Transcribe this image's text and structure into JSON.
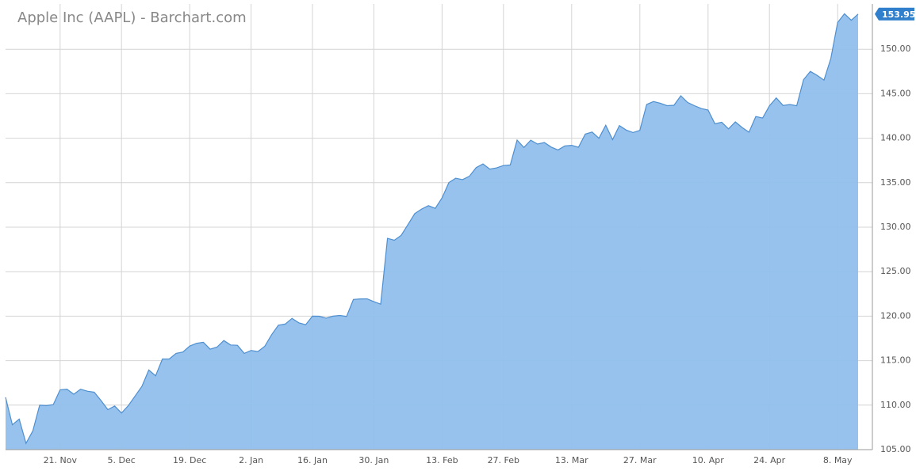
{
  "chart_data": {
    "type": "area",
    "title": "Apple Inc (AAPL) - Barchart.com",
    "categories": [
      null,
      null,
      null,
      null,
      null,
      null,
      null,
      null,
      "21. Nov",
      null,
      null,
      null,
      null,
      null,
      null,
      null,
      null,
      "5. Dec",
      null,
      null,
      null,
      null,
      null,
      null,
      null,
      null,
      null,
      "19. Dec",
      null,
      null,
      null,
      null,
      null,
      null,
      null,
      null,
      "2. Jan",
      null,
      null,
      null,
      null,
      null,
      null,
      null,
      null,
      "16. Jan",
      null,
      null,
      null,
      null,
      null,
      null,
      null,
      null,
      "30. Jan",
      null,
      null,
      null,
      null,
      null,
      null,
      null,
      null,
      null,
      "13. Feb",
      null,
      null,
      null,
      null,
      null,
      null,
      null,
      null,
      "27. Feb",
      null,
      null,
      null,
      null,
      null,
      null,
      null,
      null,
      null,
      "13. Mar",
      null,
      null,
      null,
      null,
      null,
      null,
      null,
      null,
      null,
      "27. Mar",
      null,
      null,
      null,
      null,
      null,
      null,
      null,
      null,
      null,
      "10. Apr",
      null,
      null,
      null,
      null,
      null,
      null,
      null,
      null,
      "24. Apr",
      null,
      null,
      null,
      null,
      null,
      null,
      null,
      null,
      null,
      "8. May",
      null,
      null,
      null
    ],
    "values": [
      110.88,
      107.79,
      108.43,
      105.71,
      107.11,
      109.99,
      109.95,
      110.06,
      111.73,
      111.8,
      111.23,
      111.79,
      111.57,
      111.46,
      110.52,
      109.49,
      109.9,
      109.11,
      109.95,
      111.03,
      112.12,
      113.95,
      113.3,
      115.19,
      115.19,
      115.82,
      115.97,
      116.64,
      116.95,
      117.06,
      116.29,
      116.52,
      117.26,
      116.76,
      116.73,
      115.82,
      116.15,
      116.02,
      116.61,
      117.91,
      118.99,
      119.11,
      119.75,
      119.25,
      119.04,
      120,
      119.99,
      119.78,
      120,
      120.08,
      119.97,
      121.88,
      121.94,
      121.95,
      121.63,
      121.35,
      128.75,
      128.53,
      129.08,
      130.29,
      131.53,
      132.04,
      132.42,
      132.12,
      133.29,
      135.02,
      135.51,
      135.35,
      135.72,
      136.7,
      137.11,
      136.53,
      136.66,
      136.93,
      136.99,
      139.79,
      138.96,
      139.78,
      139.34,
      139.52,
      139,
      138.68,
      139.14,
      139.2,
      138.99,
      140.46,
      140.69,
      139.99,
      141.46,
      139.84,
      141.42,
      140.92,
      140.64,
      140.88,
      143.8,
      144.12,
      143.93,
      143.66,
      143.7,
      144.77,
      144.02,
      143.66,
      143.34,
      143.17,
      141.63,
      141.8,
      141.05,
      141.83,
      141.2,
      140.68,
      142.44,
      142.27,
      143.64,
      144.53,
      143.68,
      143.79,
      143.65,
      146.58,
      147.51,
      147.06,
      146.53,
      148.96,
      153.01,
      153.99,
      153.26,
      153.95
    ],
    "color": "#90bfec",
    "stroke_color": "#4f8fcf",
    "badge_color": "#2f7fcc",
    "ylim": [
      105,
      155
    ],
    "yticks": [
      {
        "value": 105,
        "label": "105.00"
      },
      {
        "value": 110,
        "label": "110.00"
      },
      {
        "value": 115,
        "label": "115.00"
      },
      {
        "value": 120,
        "label": "120.00"
      },
      {
        "value": 125,
        "label": "125.00"
      },
      {
        "value": 130,
        "label": "130.00"
      },
      {
        "value": 135,
        "label": "135.00"
      },
      {
        "value": 140,
        "label": "140.00"
      },
      {
        "value": 145,
        "label": "145.00"
      },
      {
        "value": 150,
        "label": "150.00"
      }
    ],
    "grid": true
  }
}
